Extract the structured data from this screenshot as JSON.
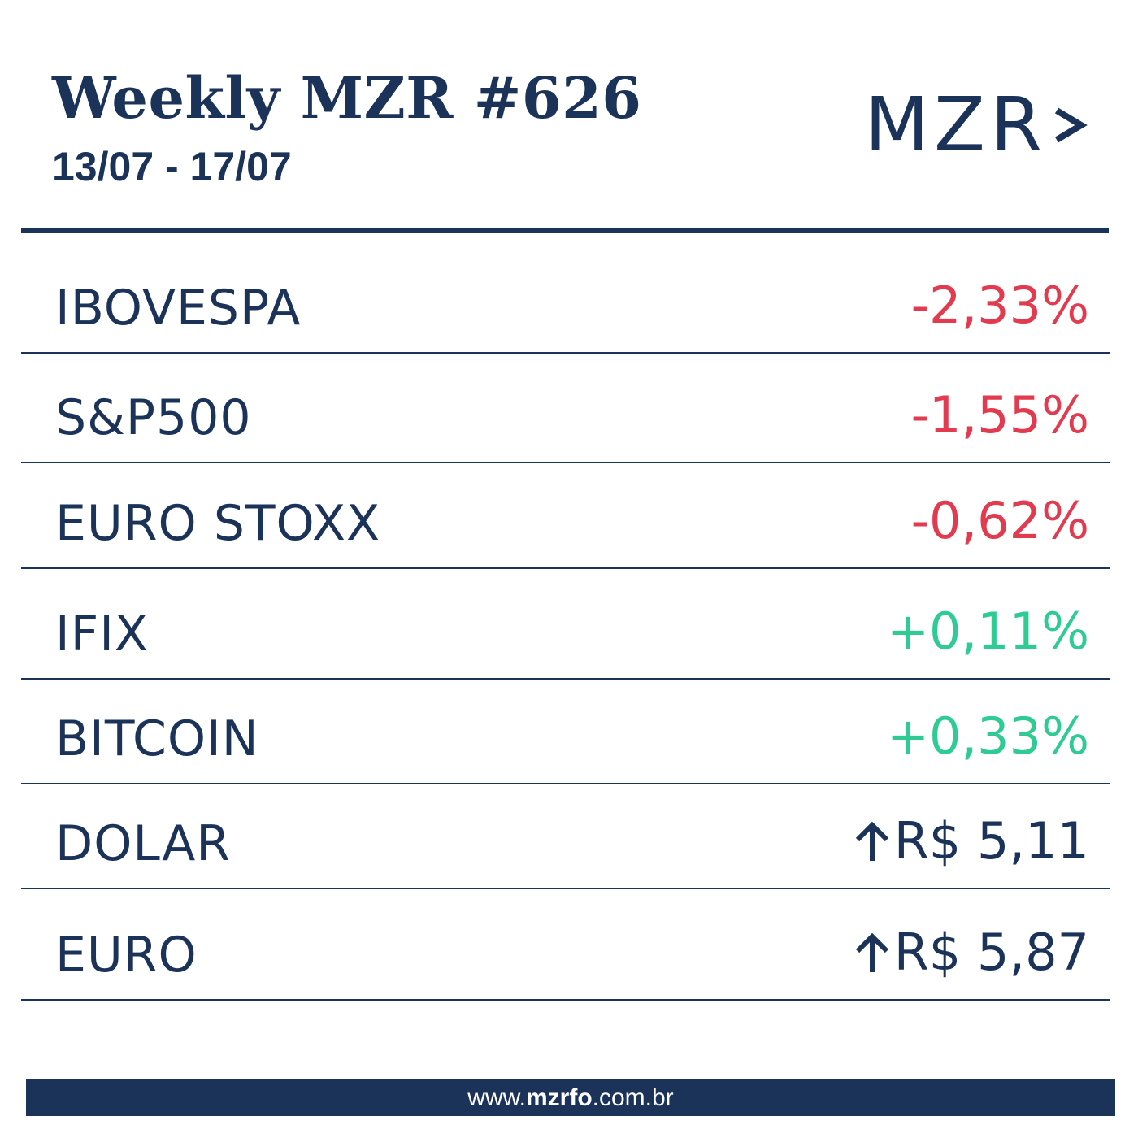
{
  "header": {
    "title": "Weekly MZR #626",
    "date_range": "13/07 - 17/07",
    "logo_text": "MZR",
    "logo_icon": "chevron-right-icon"
  },
  "colors": {
    "navy": "#1b3358",
    "negative": "#e23a4e",
    "positive": "#2ecb93"
  },
  "rows": [
    {
      "name": "IBOVESPA",
      "value": "-2,33%",
      "trend": "negative"
    },
    {
      "name": "S&P500",
      "value": "-1,55%",
      "trend": "negative"
    },
    {
      "name": "EURO STOXX",
      "value": "-0,62%",
      "trend": "negative"
    },
    {
      "name": "IFIX",
      "value": "+0,11%",
      "trend": "positive"
    },
    {
      "name": "BITCOIN",
      "value": "+0,33%",
      "trend": "positive"
    },
    {
      "name": "DOLAR",
      "value": "R$ 5,11",
      "trend": "neutral",
      "icon": "arrow-up-icon"
    },
    {
      "name": "EURO",
      "value": "R$ 5,87",
      "trend": "neutral",
      "icon": "arrow-up-icon"
    }
  ],
  "footer": {
    "url_prefix": "www.",
    "url_bold": "mzrfo",
    "url_suffix": ".com.br"
  }
}
